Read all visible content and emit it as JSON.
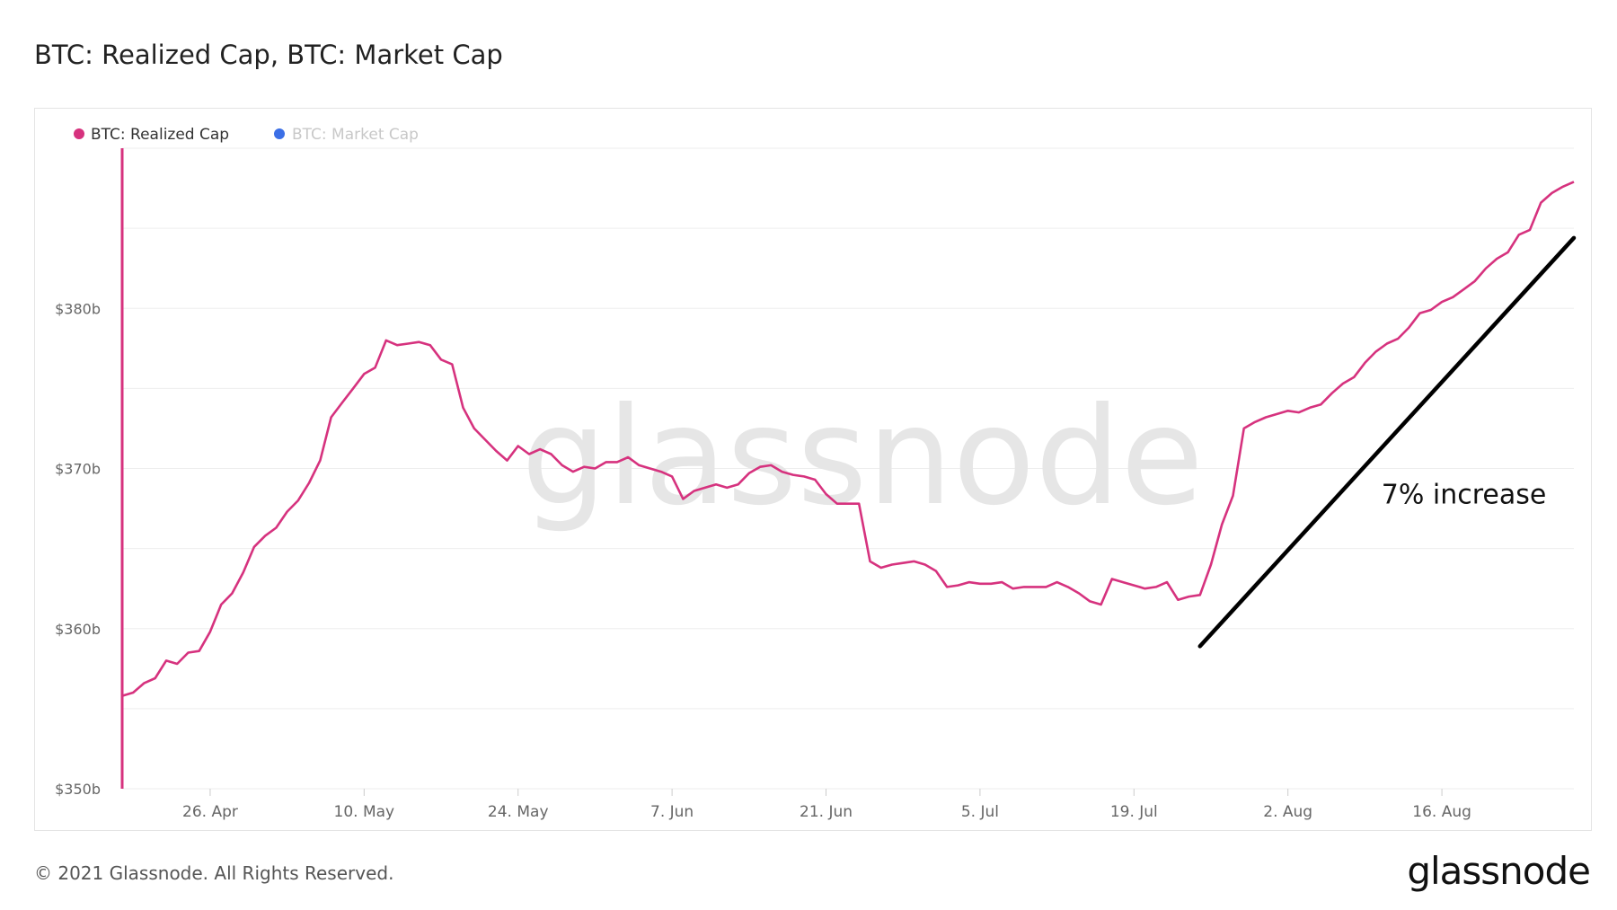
{
  "title": "BTC: Realized Cap, BTC: Market Cap",
  "footer": {
    "copyright": "© 2021 Glassnode. All Rights Reserved.",
    "logo": "glassnode"
  },
  "watermark": "glassnode",
  "colors": {
    "realized": "#d6327e",
    "market": "#3b6fe6",
    "legend_inactive": "#c8c8c8",
    "grid": "#eeeeee",
    "trend": "#000000"
  },
  "chart_data": {
    "type": "line",
    "title": "BTC: Realized Cap, BTC: Market Cap",
    "xlabel": "",
    "ylabel": "",
    "x_range": [
      "2021-04-18",
      "2021-08-28"
    ],
    "ylim": [
      350,
      390
    ],
    "yticks": [
      {
        "value": 350,
        "label": "$350b"
      },
      {
        "value": 360,
        "label": "$360b"
      },
      {
        "value": 370,
        "label": "$370b"
      },
      {
        "value": 380,
        "label": "$380b"
      }
    ],
    "xticks": [
      {
        "date": "2021-04-26",
        "label": "26. Apr"
      },
      {
        "date": "2021-05-10",
        "label": "10. May"
      },
      {
        "date": "2021-05-24",
        "label": "24. May"
      },
      {
        "date": "2021-06-07",
        "label": "7. Jun"
      },
      {
        "date": "2021-06-21",
        "label": "21. Jun"
      },
      {
        "date": "2021-07-05",
        "label": "5. Jul"
      },
      {
        "date": "2021-07-19",
        "label": "19. Jul"
      },
      {
        "date": "2021-08-02",
        "label": "2. Aug"
      },
      {
        "date": "2021-08-16",
        "label": "16. Aug"
      }
    ],
    "grid": true,
    "legend": {
      "placement": "top-left"
    },
    "series": [
      {
        "name": "BTC: Realized Cap",
        "visible": true,
        "points": [
          [
            "2021-04-18",
            355.8
          ],
          [
            "2021-04-19",
            356.0
          ],
          [
            "2021-04-20",
            356.6
          ],
          [
            "2021-04-21",
            356.9
          ],
          [
            "2021-04-22",
            358.0
          ],
          [
            "2021-04-23",
            357.8
          ],
          [
            "2021-04-24",
            358.5
          ],
          [
            "2021-04-25",
            358.6
          ],
          [
            "2021-04-26",
            359.8
          ],
          [
            "2021-04-27",
            361.5
          ],
          [
            "2021-04-28",
            362.2
          ],
          [
            "2021-04-29",
            363.5
          ],
          [
            "2021-04-30",
            365.1
          ],
          [
            "2021-05-01",
            365.8
          ],
          [
            "2021-05-02",
            366.3
          ],
          [
            "2021-05-03",
            367.3
          ],
          [
            "2021-05-04",
            368.0
          ],
          [
            "2021-05-05",
            369.1
          ],
          [
            "2021-05-06",
            370.5
          ],
          [
            "2021-05-07",
            373.2
          ],
          [
            "2021-05-08",
            374.1
          ],
          [
            "2021-05-09",
            375.0
          ],
          [
            "2021-05-10",
            375.9
          ],
          [
            "2021-05-11",
            376.3
          ],
          [
            "2021-05-12",
            378.0
          ],
          [
            "2021-05-13",
            377.7
          ],
          [
            "2021-05-14",
            377.8
          ],
          [
            "2021-05-15",
            377.9
          ],
          [
            "2021-05-16",
            377.7
          ],
          [
            "2021-05-17",
            376.8
          ],
          [
            "2021-05-18",
            376.5
          ],
          [
            "2021-05-19",
            373.8
          ],
          [
            "2021-05-20",
            372.5
          ],
          [
            "2021-05-21",
            371.8
          ],
          [
            "2021-05-22",
            371.1
          ],
          [
            "2021-05-23",
            370.5
          ],
          [
            "2021-05-24",
            371.4
          ],
          [
            "2021-05-25",
            370.9
          ],
          [
            "2021-05-26",
            371.2
          ],
          [
            "2021-05-27",
            370.9
          ],
          [
            "2021-05-28",
            370.2
          ],
          [
            "2021-05-29",
            369.8
          ],
          [
            "2021-05-30",
            370.1
          ],
          [
            "2021-05-31",
            370.0
          ],
          [
            "2021-06-01",
            370.4
          ],
          [
            "2021-06-02",
            370.4
          ],
          [
            "2021-06-03",
            370.7
          ],
          [
            "2021-06-04",
            370.2
          ],
          [
            "2021-06-05",
            370.0
          ],
          [
            "2021-06-06",
            369.8
          ],
          [
            "2021-06-07",
            369.5
          ],
          [
            "2021-06-08",
            368.1
          ],
          [
            "2021-06-09",
            368.6
          ],
          [
            "2021-06-10",
            368.8
          ],
          [
            "2021-06-11",
            369.0
          ],
          [
            "2021-06-12",
            368.8
          ],
          [
            "2021-06-13",
            369.0
          ],
          [
            "2021-06-14",
            369.7
          ],
          [
            "2021-06-15",
            370.1
          ],
          [
            "2021-06-16",
            370.2
          ],
          [
            "2021-06-17",
            369.8
          ],
          [
            "2021-06-18",
            369.6
          ],
          [
            "2021-06-19",
            369.5
          ],
          [
            "2021-06-20",
            369.3
          ],
          [
            "2021-06-21",
            368.4
          ],
          [
            "2021-06-22",
            367.8
          ],
          [
            "2021-06-23",
            367.8
          ],
          [
            "2021-06-24",
            367.8
          ],
          [
            "2021-06-25",
            364.2
          ],
          [
            "2021-06-26",
            363.8
          ],
          [
            "2021-06-27",
            364.0
          ],
          [
            "2021-06-28",
            364.1
          ],
          [
            "2021-06-29",
            364.2
          ],
          [
            "2021-06-30",
            364.0
          ],
          [
            "2021-07-01",
            363.6
          ],
          [
            "2021-07-02",
            362.6
          ],
          [
            "2021-07-03",
            362.7
          ],
          [
            "2021-07-04",
            362.9
          ],
          [
            "2021-07-05",
            362.8
          ],
          [
            "2021-07-06",
            362.8
          ],
          [
            "2021-07-07",
            362.9
          ],
          [
            "2021-07-08",
            362.5
          ],
          [
            "2021-07-09",
            362.6
          ],
          [
            "2021-07-10",
            362.6
          ],
          [
            "2021-07-11",
            362.6
          ],
          [
            "2021-07-12",
            362.9
          ],
          [
            "2021-07-13",
            362.6
          ],
          [
            "2021-07-14",
            362.2
          ],
          [
            "2021-07-15",
            361.7
          ],
          [
            "2021-07-16",
            361.5
          ],
          [
            "2021-07-17",
            363.1
          ],
          [
            "2021-07-18",
            362.9
          ],
          [
            "2021-07-19",
            362.7
          ],
          [
            "2021-07-20",
            362.5
          ],
          [
            "2021-07-21",
            362.6
          ],
          [
            "2021-07-22",
            362.9
          ],
          [
            "2021-07-23",
            361.8
          ],
          [
            "2021-07-24",
            362.0
          ],
          [
            "2021-07-25",
            362.1
          ],
          [
            "2021-07-26",
            364.0
          ],
          [
            "2021-07-27",
            366.5
          ],
          [
            "2021-07-28",
            368.3
          ],
          [
            "2021-07-29",
            372.5
          ],
          [
            "2021-07-30",
            372.9
          ],
          [
            "2021-07-31",
            373.2
          ],
          [
            "2021-08-01",
            373.4
          ],
          [
            "2021-08-02",
            373.6
          ],
          [
            "2021-08-03",
            373.5
          ],
          [
            "2021-08-04",
            373.8
          ],
          [
            "2021-08-05",
            374.0
          ],
          [
            "2021-08-06",
            374.7
          ],
          [
            "2021-08-07",
            375.3
          ],
          [
            "2021-08-08",
            375.7
          ],
          [
            "2021-08-09",
            376.6
          ],
          [
            "2021-08-10",
            377.3
          ],
          [
            "2021-08-11",
            377.8
          ],
          [
            "2021-08-12",
            378.1
          ],
          [
            "2021-08-13",
            378.8
          ],
          [
            "2021-08-14",
            379.7
          ],
          [
            "2021-08-15",
            379.9
          ],
          [
            "2021-08-16",
            380.4
          ],
          [
            "2021-08-17",
            380.7
          ],
          [
            "2021-08-18",
            381.2
          ],
          [
            "2021-08-19",
            381.7
          ],
          [
            "2021-08-20",
            382.5
          ],
          [
            "2021-08-21",
            383.1
          ],
          [
            "2021-08-22",
            383.5
          ],
          [
            "2021-08-23",
            384.6
          ],
          [
            "2021-08-24",
            384.9
          ],
          [
            "2021-08-25",
            386.6
          ],
          [
            "2021-08-26",
            387.2
          ],
          [
            "2021-08-27",
            387.6
          ],
          [
            "2021-08-28",
            387.9
          ]
        ]
      },
      {
        "name": "BTC: Market Cap",
        "visible": false,
        "points": []
      }
    ],
    "annotations": [
      {
        "type": "trendline",
        "from": [
          "2021-07-25",
          358.9
        ],
        "to": [
          "2021-08-28",
          384.4
        ]
      },
      {
        "type": "text",
        "text": "7% increase",
        "at": [
          "2021-08-18",
          367.8
        ]
      }
    ]
  }
}
